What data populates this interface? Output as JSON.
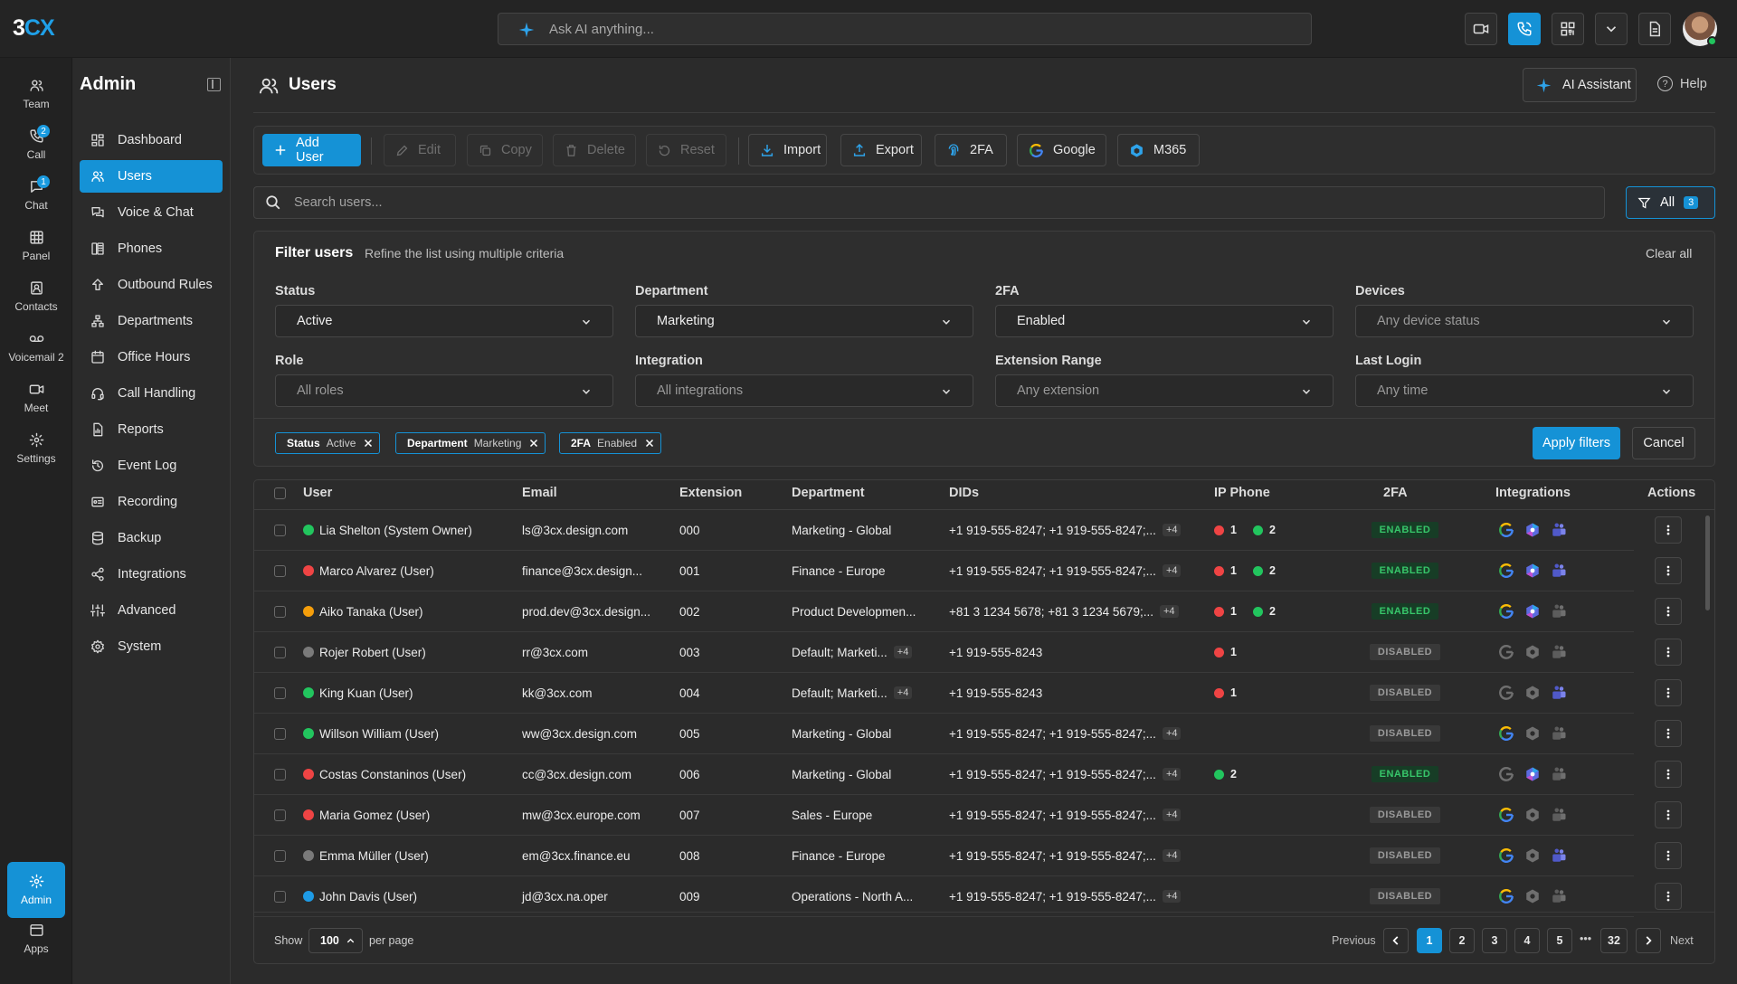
{
  "app": {
    "logo_a": "3",
    "logo_b": "CX",
    "search_placeholder": "Ask AI anything..."
  },
  "topbar_icons": [
    "video-icon",
    "phone-icon",
    "qr-code-icon",
    "chevron-down-icon",
    "document-icon"
  ],
  "rail": [
    {
      "label": "Team",
      "icon": "team-icon"
    },
    {
      "label": "Call",
      "icon": "call-icon",
      "badge": "2"
    },
    {
      "label": "Chat",
      "icon": "chat-icon",
      "badge": "1"
    },
    {
      "label": "Panel",
      "icon": "panel-icon"
    },
    {
      "label": "Contacts",
      "icon": "contacts-icon"
    },
    {
      "label": "Voicemail 2",
      "icon": "voicemail-icon"
    },
    {
      "label": "Meet",
      "icon": "meet-icon"
    },
    {
      "label": "Settings",
      "icon": "settings-icon"
    },
    {
      "label": "Admin",
      "icon": "admin-icon",
      "active": true
    },
    {
      "label": "Apps",
      "icon": "apps-icon"
    }
  ],
  "sidebar": {
    "title": "Admin",
    "items": [
      {
        "label": "Dashboard",
        "icon": "dashboard-icon"
      },
      {
        "label": "Users",
        "icon": "users-icon",
        "active": true
      },
      {
        "label": "Voice & Chat",
        "icon": "voice-chat-icon"
      },
      {
        "label": "Phones",
        "icon": "phones-icon"
      },
      {
        "label": "Outbound Rules",
        "icon": "outbound-icon"
      },
      {
        "label": "Departments",
        "icon": "departments-icon"
      },
      {
        "label": "Office Hours",
        "icon": "clock-icon"
      },
      {
        "label": "Call Handling",
        "icon": "headset-icon"
      },
      {
        "label": "Reports",
        "icon": "reports-icon"
      },
      {
        "label": "Event Log",
        "icon": "history-icon"
      },
      {
        "label": "Recording",
        "icon": "recording-icon"
      },
      {
        "label": "Backup",
        "icon": "backup-icon"
      },
      {
        "label": "Integrations",
        "icon": "share-icon"
      },
      {
        "label": "Advanced",
        "icon": "sliders-icon"
      },
      {
        "label": "System",
        "icon": "gear-icon"
      }
    ]
  },
  "page": {
    "title": "Users",
    "ai_assistant": "AI Assistant",
    "help": "Help"
  },
  "toolbar": {
    "add_user": "Add User",
    "edit": "Edit",
    "copy": "Copy",
    "delete": "Delete",
    "reset": "Reset",
    "import": "Import",
    "export": "Export",
    "twofa": "2FA",
    "google": "Google",
    "m365": "M365"
  },
  "search": {
    "placeholder": "Search users...",
    "filter_label": "All",
    "filter_count": "3"
  },
  "filters": {
    "title": "Filter users",
    "subtitle": "Refine the list using multiple criteria",
    "clear_all": "Clear all",
    "fields": [
      {
        "label": "Status",
        "value": "Active",
        "placeholder": false
      },
      {
        "label": "Department",
        "value": "Marketing",
        "placeholder": false
      },
      {
        "label": "2FA",
        "value": "Enabled",
        "placeholder": false
      },
      {
        "label": "Devices",
        "value": "Any device status",
        "placeholder": true
      },
      {
        "label": "Role",
        "value": "All roles",
        "placeholder": true
      },
      {
        "label": "Integration",
        "value": "All integrations",
        "placeholder": true
      },
      {
        "label": "Extension Range",
        "value": "Any extension",
        "placeholder": true
      },
      {
        "label": "Last Login",
        "value": "Any time",
        "placeholder": true
      }
    ],
    "chips": [
      {
        "key": "Status",
        "value": "Active"
      },
      {
        "key": "Department",
        "value": "Marketing"
      },
      {
        "key": "2FA",
        "value": "Enabled"
      }
    ],
    "apply": "Apply filters",
    "cancel": "Cancel"
  },
  "table": {
    "columns": [
      "User",
      "Email",
      "Extension",
      "Department",
      "DIDs",
      "IP Phone",
      "2FA",
      "Integrations",
      "Actions"
    ],
    "colors": {
      "green": "#22c55e",
      "red": "#ef4444",
      "orange": "#f59e0b",
      "gray": "#7a7a7a",
      "blue": "#1e9be6"
    },
    "rows": [
      {
        "status": "green",
        "user": "Lia Shelton (System Owner)",
        "email": "ls@3cx.design.com",
        "ext": "000",
        "dept": "Marketing - Global",
        "dept_more": "",
        "dids": "+1 919-555-8247; +1 919-555-8247;...",
        "dids_more": "+4",
        "red": "1",
        "green": "2",
        "twofa": "ENABLED",
        "integ": [
          true,
          true,
          true
        ]
      },
      {
        "status": "red",
        "user": "Marco Alvarez (User)",
        "email": "finance@3cx.design...",
        "ext": "001",
        "dept": "Finance - Europe",
        "dept_more": "",
        "dids": "+1 919-555-8247; +1 919-555-8247;...",
        "dids_more": "+4",
        "red": "1",
        "green": "2",
        "twofa": "ENABLED",
        "integ": [
          true,
          true,
          true
        ]
      },
      {
        "status": "orange",
        "user": "Aiko Tanaka (User)",
        "email": "prod.dev@3cx.design...",
        "ext": "002",
        "dept": "Product Developmen...",
        "dept_more": "",
        "dids": "+81 3 1234 5678; +81 3 1234 5679;...",
        "dids_more": "+4",
        "red": "1",
        "green": "2",
        "twofa": "ENABLED",
        "integ": [
          true,
          true,
          false
        ]
      },
      {
        "status": "gray",
        "user": "Rojer Robert (User)",
        "email": "rr@3cx.com",
        "ext": "003",
        "dept": "Default; Marketi...",
        "dept_more": "+4",
        "dids": "+1 919-555-8243",
        "dids_more": "",
        "red": "1",
        "green": "",
        "twofa": "DISABLED",
        "integ": [
          false,
          false,
          false
        ]
      },
      {
        "status": "green",
        "user": "King Kuan (User)",
        "email": "kk@3cx.com",
        "ext": "004",
        "dept": "Default; Marketi...",
        "dept_more": "+4",
        "dids": "+1 919-555-8243",
        "dids_more": "",
        "red": "1",
        "green": "",
        "twofa": "DISABLED",
        "integ": [
          false,
          false,
          true
        ]
      },
      {
        "status": "green",
        "user": "Willson William (User)",
        "email": "ww@3cx.design.com",
        "ext": "005",
        "dept": "Marketing - Global",
        "dept_more": "",
        "dids": "+1 919-555-8247; +1 919-555-8247;...",
        "dids_more": "+4",
        "red": "",
        "green": "",
        "twofa": "DISABLED",
        "integ": [
          true,
          false,
          false
        ]
      },
      {
        "status": "red",
        "user": "Costas Constaninos (User)",
        "email": "cc@3cx.design.com",
        "ext": "006",
        "dept": "Marketing - Global",
        "dept_more": "",
        "dids": "+1 919-555-8247; +1 919-555-8247;...",
        "dids_more": "+4",
        "red": "",
        "green": "2",
        "twofa": "ENABLED",
        "integ": [
          false,
          true,
          false
        ]
      },
      {
        "status": "red",
        "user": "Maria Gomez (User)",
        "email": "mw@3cx.europe.com",
        "ext": "007",
        "dept": "Sales - Europe",
        "dept_more": "",
        "dids": "+1 919-555-8247; +1 919-555-8247;...",
        "dids_more": "+4",
        "red": "",
        "green": "",
        "twofa": "DISABLED",
        "integ": [
          true,
          false,
          false
        ]
      },
      {
        "status": "gray",
        "user": "Emma Müller (User)",
        "email": "em@3cx.finance.eu",
        "ext": "008",
        "dept": "Finance - Europe",
        "dept_more": "",
        "dids": "+1 919-555-8247; +1 919-555-8247;...",
        "dids_more": "+4",
        "red": "",
        "green": "",
        "twofa": "DISABLED",
        "integ": [
          true,
          false,
          true
        ]
      },
      {
        "status": "blue",
        "user": "John Davis (User)",
        "email": "jd@3cx.na.oper",
        "ext": "009",
        "dept": "Operations - North A...",
        "dept_more": "",
        "dids": "+1 919-555-8247; +1 919-555-8247;...",
        "dids_more": "+4",
        "red": "",
        "green": "",
        "twofa": "DISABLED",
        "integ": [
          true,
          false,
          false
        ]
      }
    ]
  },
  "pagination": {
    "show": "Show",
    "per_page_value": "100",
    "per_page": "per page",
    "previous": "Previous",
    "next": "Next",
    "pages": [
      "1",
      "2",
      "3",
      "4",
      "5"
    ],
    "ellipsis": "•••",
    "last": "32",
    "current": "1"
  }
}
